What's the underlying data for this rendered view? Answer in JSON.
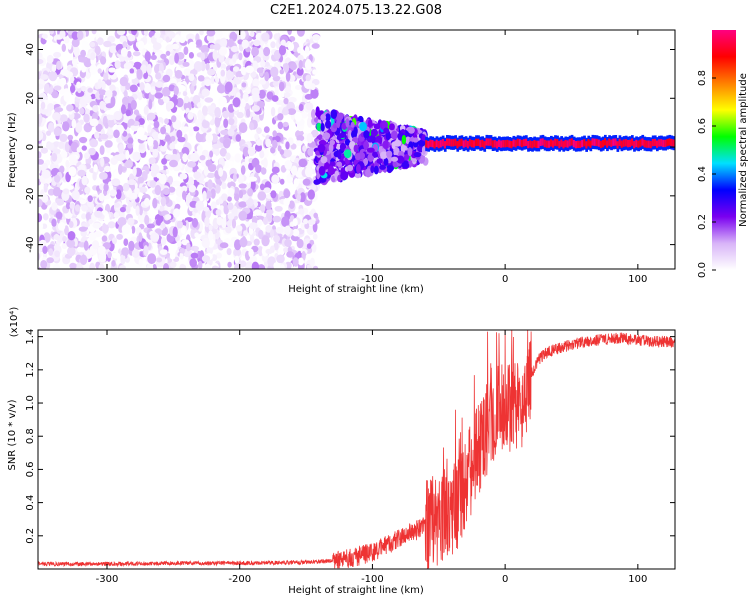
{
  "title": "C2E1.2024.075.13.22.G08",
  "chart_data": [
    {
      "type": "heatmap",
      "xlabel": "Height of straight line (km)",
      "ylabel": "Frequency (Hz)",
      "xlim": [
        -352,
        128
      ],
      "ylim": [
        -50,
        48
      ],
      "xticks": [
        -300,
        -200,
        -100,
        0,
        100
      ],
      "yticks": [
        -40,
        -20,
        0,
        20,
        40
      ],
      "colorbar": {
        "label": "Normalized spectral amplitude",
        "range": [
          0,
          1
        ],
        "ticks": [
          "0.0",
          "0.2",
          "0.4",
          "0.6",
          "0.8"
        ],
        "stops": [
          "#ffffff",
          "#d8b4f8",
          "#7a00f0",
          "#0000ff",
          "#00e0ff",
          "#00ff00",
          "#ffff00",
          "#ff8000",
          "#ff0000",
          "#ff0080"
        ]
      },
      "regions": [
        {
          "x_range": [
            -352,
            -142
          ],
          "freq_range": [
            -50,
            48
          ],
          "amplitude": [
            0.03,
            0.15
          ],
          "texture": "scattered noise"
        },
        {
          "x_range": [
            -142,
            -60
          ],
          "freq_range": [
            -15,
            15
          ],
          "amplitude": [
            0.1,
            0.3
          ],
          "texture": "converging noise"
        },
        {
          "x_range": [
            -60,
            128
          ],
          "freq_center": 1.5,
          "freq_halfwidth": 1.5,
          "amplitude": [
            0.9,
            1.0
          ],
          "texture": "narrow tone"
        }
      ]
    },
    {
      "type": "line",
      "xlabel": "Height of straight line (km)",
      "ylabel": "SNR (10 * v/v)",
      "scale_label": "(x10⁴)",
      "xlim": [
        -352,
        128
      ],
      "ylim": [
        0,
        1.44
      ],
      "xticks": [
        -300,
        -200,
        -100,
        0,
        100
      ],
      "yticks": [
        "0.2",
        "0.4",
        "0.6",
        "0.8",
        "1.0",
        "1.2",
        "1.4"
      ],
      "ytick_values": [
        0.2,
        0.4,
        0.6,
        0.8,
        1.0,
        1.2,
        1.4
      ],
      "color": "#ee3333",
      "series": [
        {
          "x": [
            -352,
            -300,
            -250,
            -200,
            -150,
            -130,
            -115,
            -100,
            -90,
            -80,
            -70,
            -60,
            -50,
            -45,
            -40,
            -35,
            -30,
            -25,
            -20,
            -15,
            -10,
            -5,
            0,
            5,
            10,
            15,
            20,
            25,
            30,
            40,
            50,
            60,
            70,
            80,
            90,
            100,
            110,
            120,
            128
          ],
          "values": [
            0.03,
            0.03,
            0.035,
            0.035,
            0.04,
            0.05,
            0.07,
            0.1,
            0.14,
            0.18,
            0.22,
            0.26,
            0.3,
            0.34,
            0.36,
            0.4,
            0.5,
            0.62,
            0.72,
            0.82,
            0.9,
            0.96,
            1.0,
            0.98,
            0.96,
            1.0,
            1.18,
            1.26,
            1.3,
            1.33,
            1.35,
            1.37,
            1.38,
            1.39,
            1.39,
            1.38,
            1.37,
            1.37,
            1.36
          ]
        }
      ]
    }
  ]
}
